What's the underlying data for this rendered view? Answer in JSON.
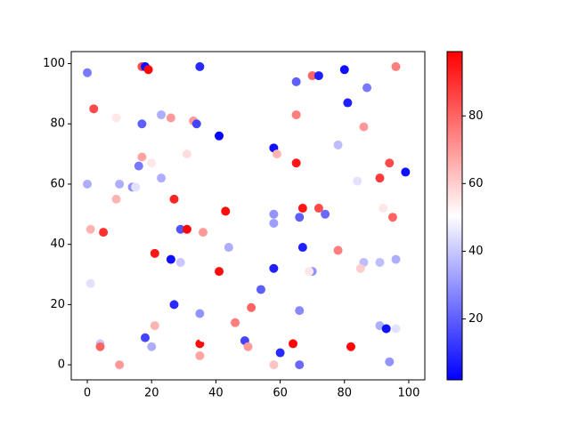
{
  "chart_data": {
    "type": "scatter",
    "x": [
      0,
      17,
      18,
      19,
      35,
      70,
      72,
      80,
      96,
      2,
      9,
      17,
      23,
      26,
      33,
      34,
      41,
      65,
      65,
      87,
      81,
      78,
      86,
      58,
      59,
      17,
      20,
      16,
      31,
      65,
      0,
      10,
      14,
      15,
      23,
      9,
      27,
      84,
      91,
      94,
      99,
      58,
      58,
      66,
      67,
      72,
      74,
      92,
      95,
      1,
      5,
      29,
      31,
      36,
      43,
      21,
      26,
      29,
      44,
      67,
      78,
      86,
      85,
      91,
      96,
      1,
      41,
      58,
      70,
      69,
      54,
      27,
      35,
      51,
      66,
      21,
      46,
      18,
      20,
      4,
      4,
      10,
      35,
      35,
      36,
      49,
      50,
      58,
      60,
      64,
      66,
      82,
      91,
      93,
      96,
      94
    ],
    "y": [
      97,
      99,
      99,
      98,
      99,
      96,
      96,
      98,
      99,
      85,
      82,
      80,
      83,
      82,
      81,
      80,
      76,
      94,
      83,
      92,
      87,
      73,
      79,
      72,
      70,
      69,
      67,
      66,
      70,
      67,
      60,
      60,
      59,
      59,
      62,
      55,
      55,
      61,
      62,
      67,
      64,
      50,
      47,
      49,
      52,
      52,
      50,
      52,
      49,
      45,
      44,
      45,
      45,
      44,
      51,
      37,
      35,
      34,
      39,
      39,
      38,
      34,
      32,
      34,
      35,
      27,
      31,
      32,
      31,
      31,
      25,
      20,
      17,
      19,
      18,
      13,
      14,
      9,
      6,
      7,
      6,
      0,
      7,
      3,
      9,
      8,
      6,
      0,
      4,
      7,
      0,
      6,
      13,
      12,
      12,
      1
    ],
    "c": [
      25,
      85,
      5,
      98,
      10,
      80,
      8,
      5,
      75,
      85,
      55,
      20,
      35,
      70,
      70,
      15,
      3,
      20,
      75,
      25,
      8,
      38,
      70,
      5,
      65,
      68,
      55,
      25,
      57,
      95,
      35,
      35,
      30,
      45,
      35,
      65,
      92,
      45,
      88,
      85,
      5,
      30,
      32,
      20,
      95,
      85,
      22,
      55,
      80,
      65,
      90,
      18,
      98,
      70,
      97,
      95,
      5,
      40,
      35,
      8,
      75,
      38,
      60,
      38,
      35,
      45,
      97,
      8,
      30,
      55,
      20,
      10,
      30,
      80,
      28,
      65,
      75,
      15,
      35,
      40,
      80,
      70,
      97,
      68,
      50,
      15,
      70,
      62,
      10,
      98,
      22,
      98,
      35,
      5,
      45,
      30
    ],
    "xlim": [
      -5,
      105
    ],
    "ylim": [
      -5,
      104
    ],
    "clim": [
      2,
      99
    ],
    "xticks": [
      0,
      20,
      40,
      60,
      80,
      100
    ],
    "yticks": [
      0,
      20,
      40,
      60,
      80,
      100
    ],
    "cticks": [
      20,
      40,
      60,
      80
    ],
    "colormap": "bwr"
  }
}
